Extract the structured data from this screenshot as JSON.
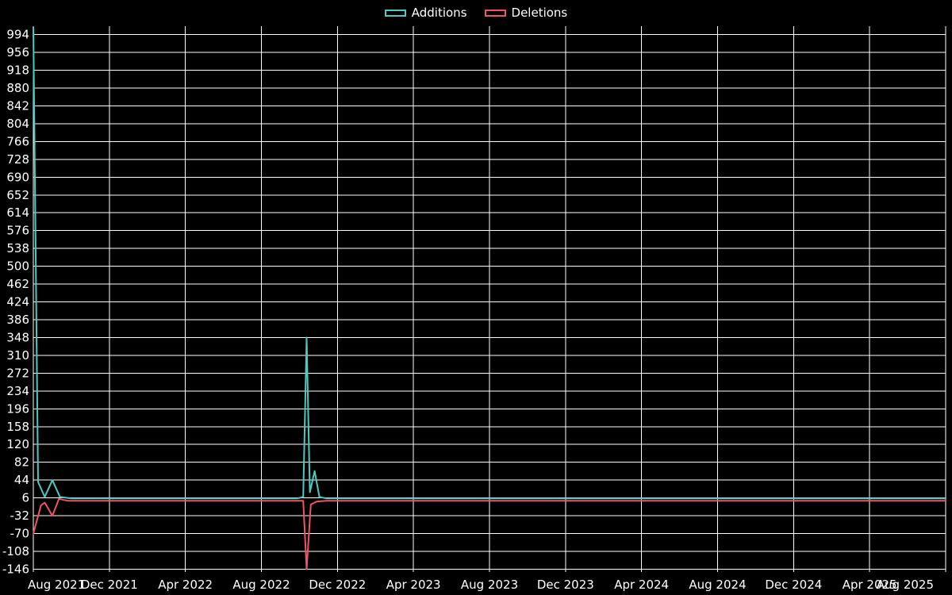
{
  "legend": {
    "items": [
      {
        "label": "Additions",
        "color": "#4cc9c0"
      },
      {
        "label": "Deletions",
        "color": "#ee5468"
      }
    ]
  },
  "chart_data": {
    "type": "line",
    "title": "",
    "xlabel": "",
    "ylabel": "",
    "grid": true,
    "background_color": "#000000",
    "grid_color": "#ffffff",
    "text_color": "#ffffff",
    "legend_position": "top-center",
    "x_tick_labels": [
      "Aug 2021",
      "Dec 2021",
      "Apr 2022",
      "Aug 2022",
      "Dec 2022",
      "Apr 2023",
      "Aug 2023",
      "Dec 2023",
      "Apr 2024",
      "Aug 2024",
      "Dec 2024",
      "Apr 2025",
      "Aug 2025"
    ],
    "x_tick_months": [
      0,
      4,
      8,
      12,
      16,
      20,
      24,
      28,
      32,
      36,
      40,
      44,
      48
    ],
    "y_ticks": [
      994,
      956,
      918,
      880,
      842,
      804,
      766,
      728,
      690,
      652,
      614,
      576,
      538,
      500,
      462,
      424,
      386,
      348,
      310,
      272,
      234,
      196,
      158,
      120,
      82,
      44,
      6,
      -32,
      -70,
      -108,
      -146
    ],
    "xlim_months": [
      0,
      48
    ],
    "ylim": [
      -152,
      1012
    ],
    "series": [
      {
        "name": "Additions",
        "color": "#4cc9c0",
        "points_month_value": [
          [
            0,
            1010
          ],
          [
            0.25,
            40
          ],
          [
            0.6,
            8
          ],
          [
            1.0,
            44
          ],
          [
            1.4,
            8
          ],
          [
            2,
            5
          ],
          [
            4,
            5
          ],
          [
            7,
            5
          ],
          [
            10,
            5
          ],
          [
            13,
            5
          ],
          [
            13.9,
            5
          ],
          [
            14.2,
            8
          ],
          [
            14.38,
            348
          ],
          [
            14.55,
            18
          ],
          [
            14.8,
            63
          ],
          [
            15.05,
            8
          ],
          [
            15.4,
            5
          ],
          [
            18,
            5
          ],
          [
            24,
            5
          ],
          [
            30,
            5
          ],
          [
            36,
            5
          ],
          [
            42,
            5
          ],
          [
            48,
            5
          ]
        ]
      },
      {
        "name": "Deletions",
        "color": "#ee5468",
        "points_month_value": [
          [
            0,
            -70
          ],
          [
            0.4,
            -10
          ],
          [
            0.6,
            -4
          ],
          [
            1.0,
            -32
          ],
          [
            1.35,
            4
          ],
          [
            1.8,
            0
          ],
          [
            4,
            0
          ],
          [
            7,
            0
          ],
          [
            10,
            0
          ],
          [
            13,
            0
          ],
          [
            14.2,
            0
          ],
          [
            14.38,
            -146
          ],
          [
            14.6,
            -8
          ],
          [
            14.9,
            -2
          ],
          [
            15.4,
            0
          ],
          [
            18,
            0
          ],
          [
            24,
            0
          ],
          [
            30,
            0
          ],
          [
            36,
            0
          ],
          [
            42,
            0
          ],
          [
            48,
            0
          ]
        ]
      }
    ]
  }
}
